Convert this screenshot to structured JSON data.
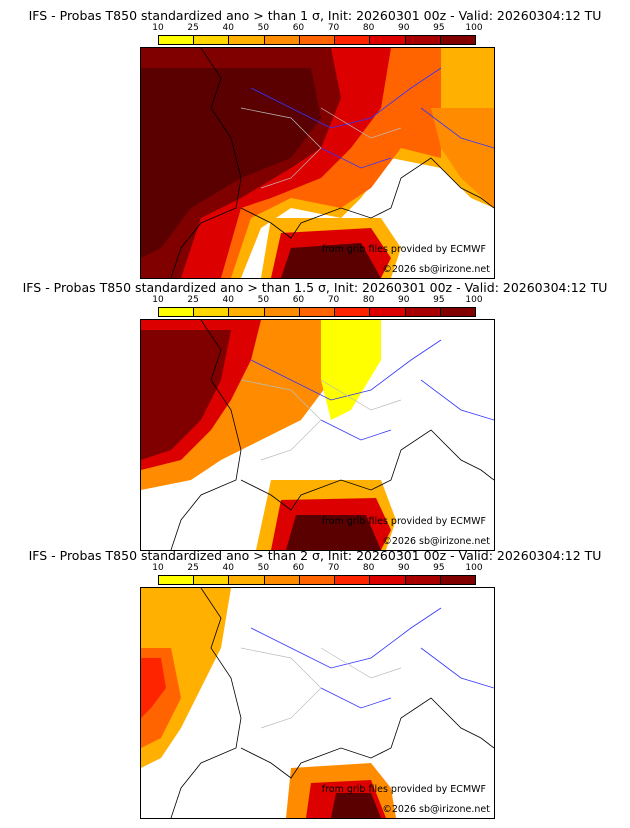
{
  "colorbar": {
    "ticks": [
      "10",
      "25",
      "40",
      "50",
      "60",
      "70",
      "80",
      "90",
      "95",
      "100"
    ],
    "colors": [
      "#ffff00",
      "#ffd700",
      "#ffb000",
      "#ff8c00",
      "#ff6400",
      "#ff2400",
      "#dd0000",
      "#a80000",
      "#800000",
      "#5a0000"
    ]
  },
  "panels": [
    {
      "title": "IFS - Probas T850  standardized ano > than 1 σ, Init: 20260301 00z - Valid: 20260304:12 TU"
    },
    {
      "title": "IFS - Probas T850  standardized ano > than 1.5 σ, Init: 20260301 00z - Valid: 20260304:12 TU"
    },
    {
      "title": "IFS - Probas T850  standardized ano > than 2 σ, Init: 20260301 00z - Valid: 20260304:12 TU"
    }
  ],
  "credits": {
    "source": "from grib files provided by ECMWF",
    "copyright": "©2026 sb@irizone.net"
  }
}
